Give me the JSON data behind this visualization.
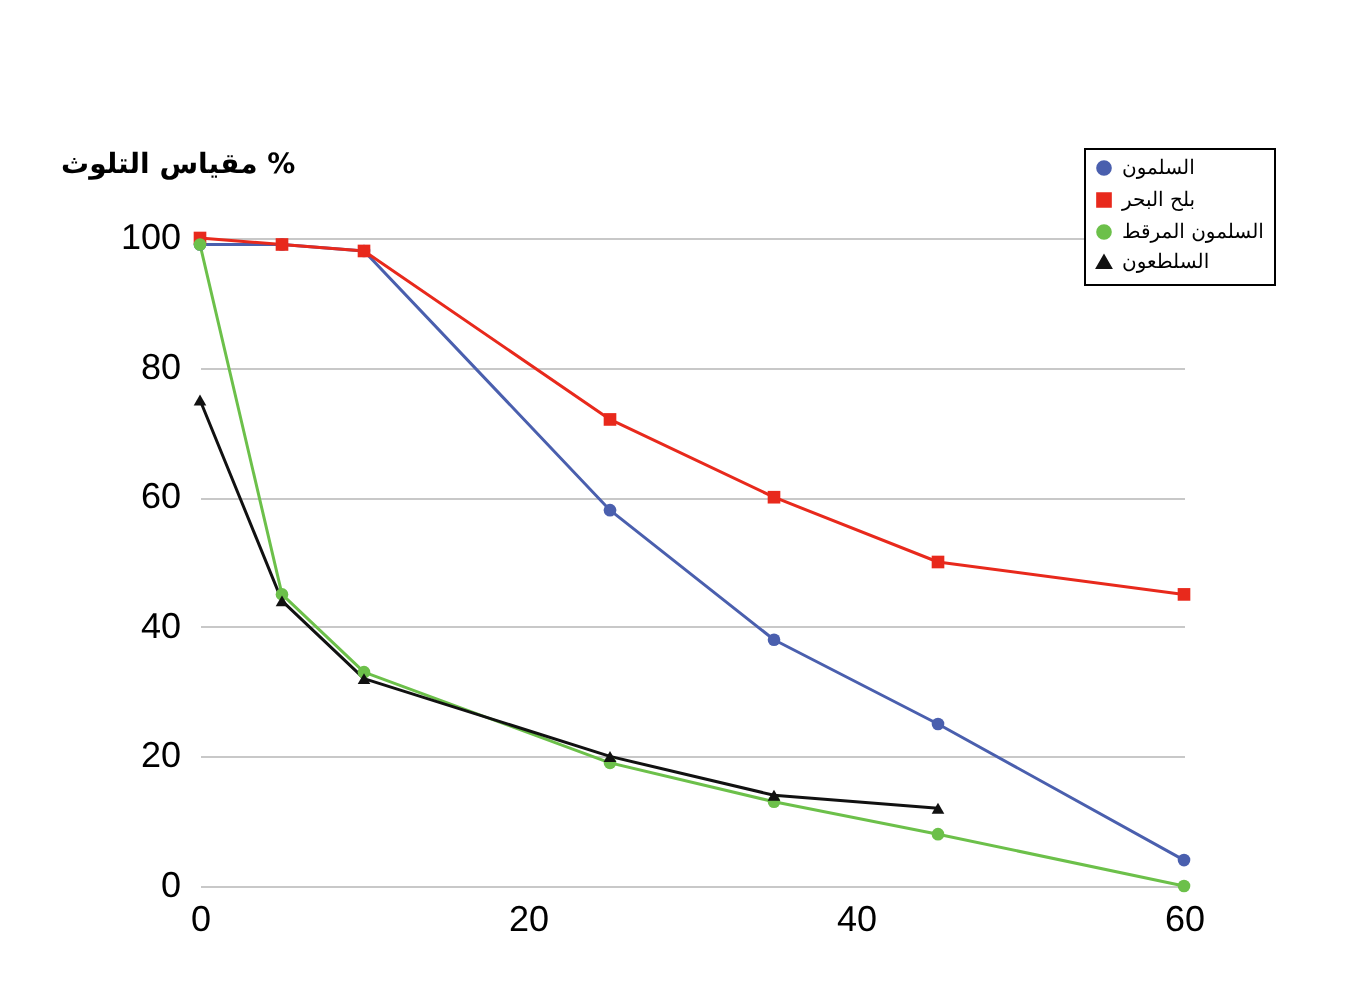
{
  "chart_data": {
    "type": "line",
    "ylabel": "مقياس التلوث %",
    "x": [
      0,
      5,
      10,
      25,
      35,
      45,
      60
    ],
    "series": [
      {
        "name": "السلمون",
        "color": "#4a5fae",
        "marker": "circle",
        "values": [
          99,
          99,
          98,
          58,
          38,
          25,
          4
        ]
      },
      {
        "name": "بلح البحر",
        "color": "#e8291c",
        "marker": "square",
        "values": [
          100,
          99,
          98,
          72,
          60,
          50,
          45
        ]
      },
      {
        "name": "السلمون المرقط",
        "color": "#6cc04a",
        "marker": "circle",
        "values": [
          99,
          45,
          33,
          19,
          13,
          8,
          0
        ]
      },
      {
        "name": "السلطعون",
        "color": "#111111",
        "marker": "triangle",
        "values": [
          75,
          44,
          32,
          20,
          14,
          12,
          null
        ]
      }
    ],
    "xlim": [
      0,
      60
    ],
    "xticks": [
      0,
      20,
      40,
      60
    ],
    "ylim": [
      0,
      100
    ],
    "yticks": [
      0,
      20,
      40,
      60,
      80,
      100
    ],
    "grid": "y",
    "legend": "top right",
    "line_style": "solid"
  }
}
